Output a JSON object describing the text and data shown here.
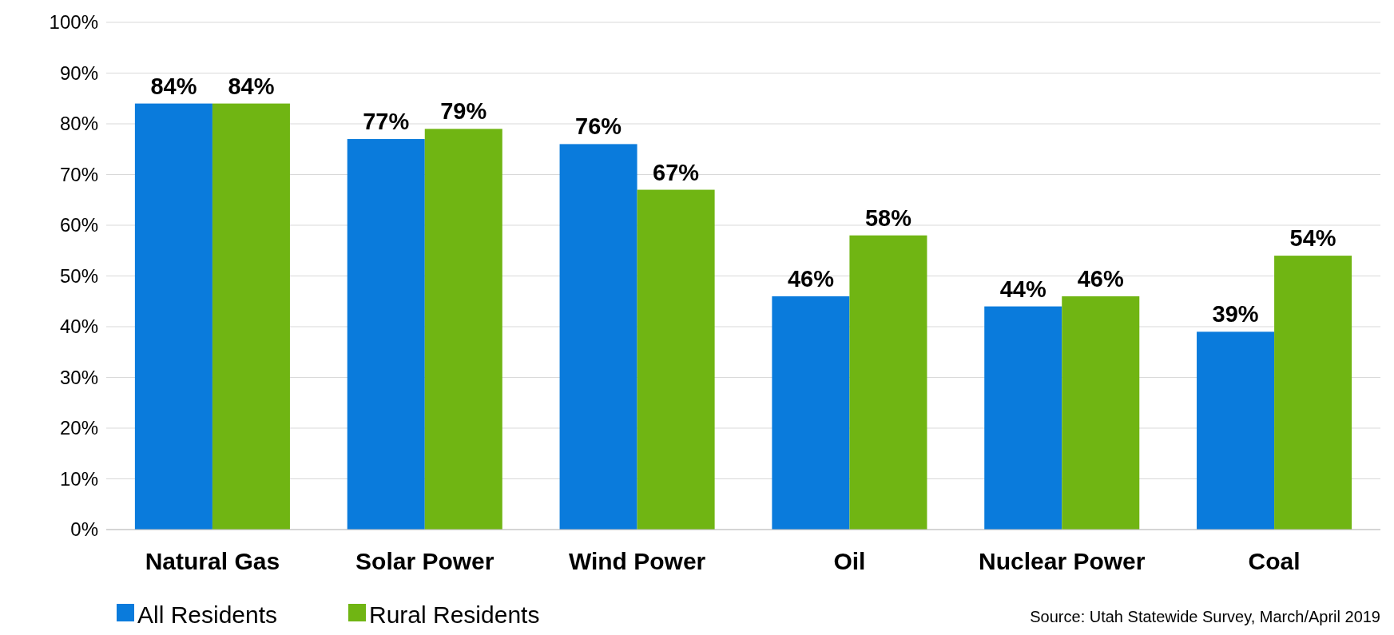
{
  "chart_data": {
    "type": "bar",
    "categories": [
      "Natural Gas",
      "Solar Power",
      "Wind Power",
      "Oil",
      "Nuclear Power",
      "Coal"
    ],
    "series": [
      {
        "name": "All Residents",
        "color": "#0a7bdc",
        "values": [
          84,
          77,
          76,
          46,
          44,
          39
        ]
      },
      {
        "name": "Rural Residents",
        "color": "#70b513",
        "values": [
          84,
          79,
          67,
          58,
          46,
          54
        ]
      }
    ],
    "ylim": [
      0,
      100
    ],
    "yticks": [
      {
        "value": 0,
        "label": "0%"
      },
      {
        "value": 10,
        "label": "10%"
      },
      {
        "value": 20,
        "label": "20%"
      },
      {
        "value": 30,
        "label": "30%"
      },
      {
        "value": 40,
        "label": "40%"
      },
      {
        "value": 50,
        "label": "50%"
      },
      {
        "value": 60,
        "label": "60%"
      },
      {
        "value": 70,
        "label": "70%"
      },
      {
        "value": 80,
        "label": "80%"
      },
      {
        "value": 90,
        "label": "90%"
      },
      {
        "value": 100,
        "label": "100%"
      }
    ],
    "value_labels": [
      [
        "84%",
        "77%",
        "76%",
        "46%",
        "44%",
        "39%"
      ],
      [
        "84%",
        "79%",
        "67%",
        "58%",
        "46%",
        "54%"
      ]
    ],
    "grid": "y",
    "legend": "bottom left",
    "annotations": [
      "Source: Utah Statewide Survey, March/April 2019"
    ]
  }
}
